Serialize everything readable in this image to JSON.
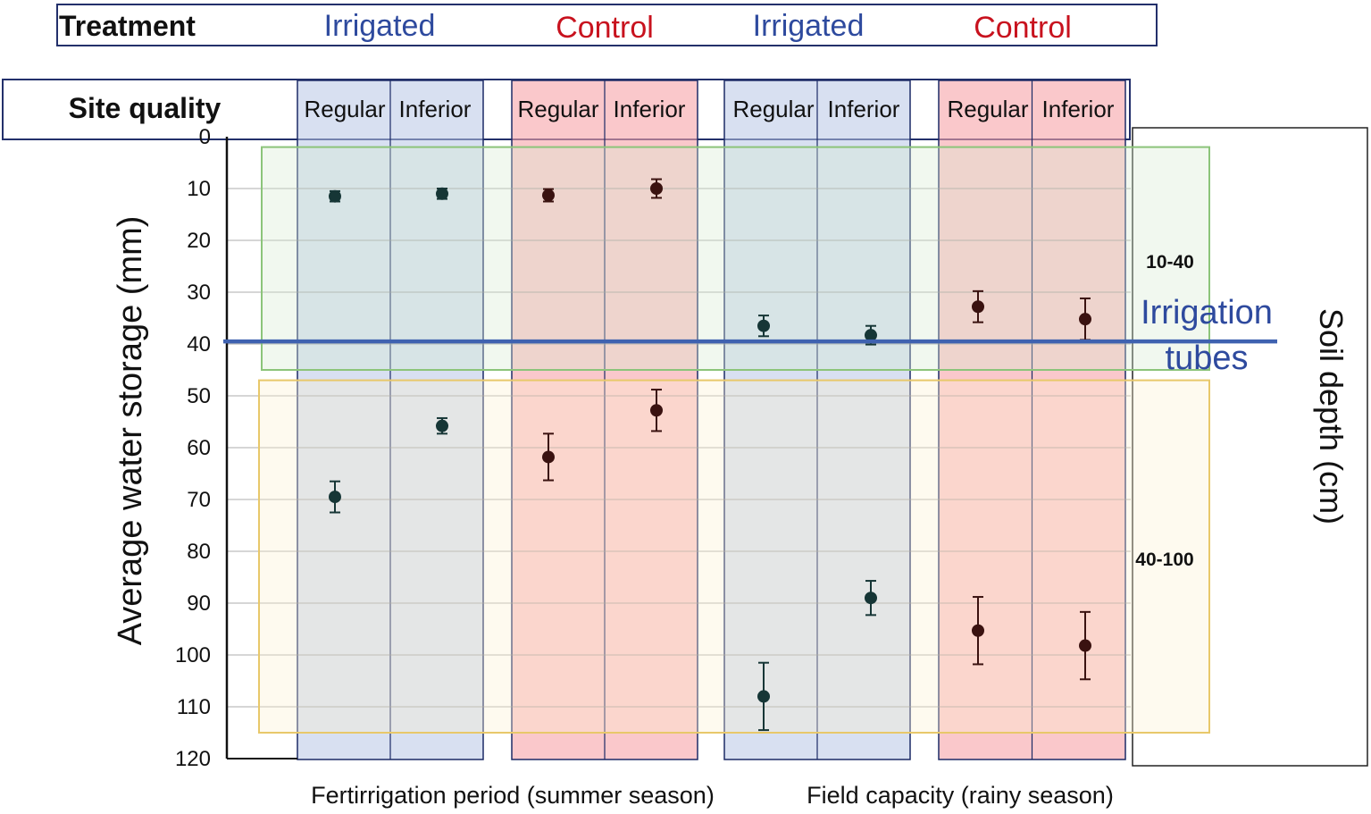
{
  "chart_data": {
    "type": "scatter",
    "treatment_header": {
      "label": "Treatment",
      "groups": [
        {
          "name": "Irrigated",
          "color": "#2e4a9e"
        },
        {
          "name": "Control",
          "color": "#c8121e"
        },
        {
          "name": "Irrigated",
          "color": "#2e4a9e"
        },
        {
          "name": "Control",
          "color": "#c8121e"
        }
      ]
    },
    "site_quality": {
      "label": "Site quality",
      "categories": [
        "Regular",
        "Inferior",
        "Regular",
        "Inferior",
        "Regular",
        "Inferior",
        "Regular",
        "Inferior"
      ]
    },
    "ylabel": "Average water storage (mm)",
    "ylim": [
      0,
      120
    ],
    "yticks": [
      0,
      10,
      20,
      30,
      40,
      50,
      60,
      70,
      80,
      90,
      100,
      110,
      120
    ],
    "y_inverted": true,
    "right_label": "Soil depth (cm)",
    "depth_layers": [
      {
        "label": "10-40",
        "range": [
          2,
          45
        ]
      },
      {
        "label": "40-100",
        "range": [
          47,
          115
        ]
      }
    ],
    "irrigation_line": {
      "label_line1": "Irrigation",
      "label_line2": "tubes",
      "value": 39.5
    },
    "periods": [
      "Fertirrigation period (summer season)",
      "Field capacity (rainy season)"
    ],
    "series": [
      {
        "name": "10-40",
        "values": [
          11.5,
          11,
          11.3,
          10,
          36.5,
          38.3,
          32.8,
          35.2
        ],
        "err": [
          1.0,
          1.0,
          1.2,
          1.8,
          2.0,
          1.8,
          3.0,
          4.0
        ]
      },
      {
        "name": "40-100",
        "values": [
          69.5,
          55.8,
          61.8,
          52.8,
          108,
          89,
          95.3,
          98.2
        ],
        "err": [
          3.0,
          1.5,
          4.5,
          4.0,
          6.5,
          3.3,
          6.5,
          6.5
        ]
      }
    ],
    "colors": {
      "irrigated_fill": "#b8c6e6",
      "control_fill": "#f7a3a8",
      "green_box": "#8cc47a",
      "green_fill": "#d6ecd0",
      "yellow_box": "#e8c86a",
      "yellow_fill": "#fbf1d2",
      "irrigation_line": "#3f62b0",
      "irrigated_marker": "#163636",
      "control_marker": "#3a1210"
    }
  }
}
